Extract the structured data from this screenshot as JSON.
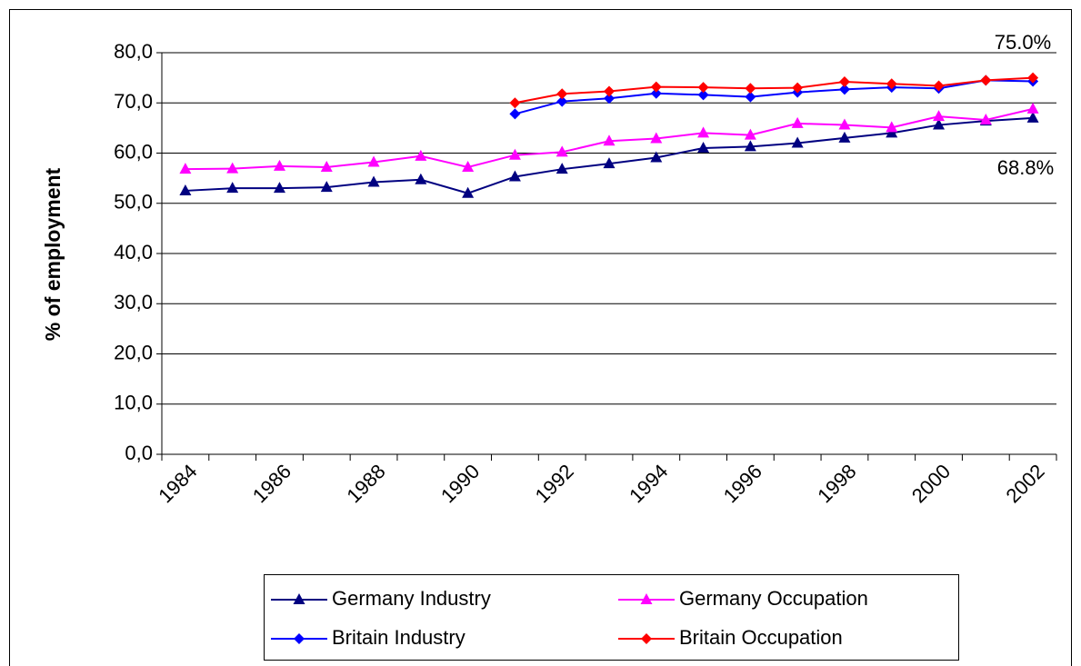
{
  "chart_data": {
    "type": "line",
    "y_label": "% of employment",
    "categories": [
      "1984",
      null,
      "1986",
      null,
      "1988",
      null,
      "1990",
      null,
      "1992",
      null,
      "1994",
      null,
      "1996",
      null,
      "1998",
      null,
      "2000",
      null,
      "2002"
    ],
    "ylim": [
      0,
      80
    ],
    "yticks": [
      {
        "value": 0,
        "label": "0,0"
      },
      {
        "value": 10,
        "label": "10,0"
      },
      {
        "value": 20,
        "label": "20,0"
      },
      {
        "value": 30,
        "label": "30,0"
      },
      {
        "value": 40,
        "label": "40,0"
      },
      {
        "value": 50,
        "label": "50,0"
      },
      {
        "value": 60,
        "label": "60,0"
      },
      {
        "value": 70,
        "label": "70,0"
      },
      {
        "value": 80,
        "label": "80,0"
      }
    ],
    "grid": true,
    "series": [
      {
        "name": "Germany Industry",
        "color": "#000080",
        "marker": "triangle",
        "values": [
          52.5,
          53.0,
          53.0,
          53.2,
          54.2,
          54.7,
          52.0,
          55.3,
          56.8,
          57.9,
          59.1,
          61.0,
          61.3,
          62.0,
          63.0,
          64.0,
          65.6,
          66.4,
          67.0
        ]
      },
      {
        "name": "Germany Occupation",
        "color": "#FF00FF",
        "marker": "triangle",
        "values": [
          56.8,
          56.9,
          57.4,
          57.2,
          58.2,
          59.4,
          57.2,
          59.6,
          60.2,
          62.4,
          62.9,
          64.0,
          63.6,
          65.9,
          65.6,
          65.1,
          67.3,
          66.6,
          68.8
        ]
      },
      {
        "name": "Britain Industry",
        "color": "#0000FF",
        "marker": "diamond",
        "values": [
          null,
          null,
          null,
          null,
          null,
          null,
          null,
          67.8,
          70.3,
          70.9,
          71.9,
          71.6,
          71.2,
          72.1,
          72.7,
          73.1,
          72.9,
          74.5,
          74.3
        ]
      },
      {
        "name": "Britain Occupation",
        "color": "#FF0000",
        "marker": "diamond",
        "values": [
          null,
          null,
          null,
          null,
          null,
          null,
          null,
          70.0,
          71.8,
          72.3,
          73.2,
          73.1,
          72.9,
          73.0,
          74.2,
          73.8,
          73.4,
          74.5,
          75.0
        ]
      }
    ],
    "annotations": [
      "75.0%",
      "68.8%"
    ]
  }
}
